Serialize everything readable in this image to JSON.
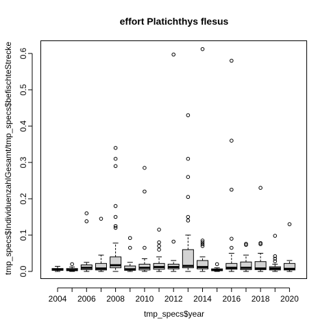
{
  "chart_data": {
    "type": "boxplot",
    "title": "effort Platichthys flesus",
    "xlabel": "tmp_specs$year",
    "ylabel": "tmp_specs$IndividuenzahlGesamt/tmp_specs$befischteStrecke",
    "ylim": [
      0,
      0.62
    ],
    "yticks": [
      0.0,
      0.1,
      0.2,
      0.3,
      0.4,
      0.5,
      0.6
    ],
    "ytick_labels": [
      "0.0",
      "0.1",
      "0.2",
      "0.3",
      "0.4",
      "0.5",
      "0.6"
    ],
    "xtick_labels": [
      "2004",
      "2006",
      "2008",
      "2010",
      "2012",
      "2014",
      "2016",
      "2018",
      "2020"
    ],
    "xtick_positions": [
      1,
      3,
      5,
      7,
      9,
      11,
      13,
      15,
      17
    ],
    "boxes": [
      {
        "year": "2004",
        "low": 0.0,
        "q1": 0.003,
        "median": 0.005,
        "q3": 0.008,
        "high": 0.014,
        "outliers": []
      },
      {
        "year": "2005",
        "low": 0.0,
        "q1": 0.002,
        "median": 0.004,
        "q3": 0.008,
        "high": 0.012,
        "outliers": [
          0.02
        ]
      },
      {
        "year": "2006",
        "low": 0.0,
        "q1": 0.005,
        "median": 0.01,
        "q3": 0.018,
        "high": 0.025,
        "outliers": [
          0.138,
          0.16
        ]
      },
      {
        "year": "2007",
        "low": 0.0,
        "q1": 0.004,
        "median": 0.008,
        "q3": 0.022,
        "high": 0.045,
        "outliers": [
          0.145
        ]
      },
      {
        "year": "2008",
        "low": 0.0,
        "q1": 0.01,
        "median": 0.017,
        "q3": 0.04,
        "high": 0.078,
        "outliers": [
          0.12,
          0.125,
          0.15,
          0.18,
          0.29,
          0.31,
          0.34
        ]
      },
      {
        "year": "2009",
        "low": 0.0,
        "q1": 0.003,
        "median": 0.006,
        "q3": 0.015,
        "high": 0.025,
        "outliers": [
          0.065,
          0.092
        ]
      },
      {
        "year": "2010",
        "low": 0.0,
        "q1": 0.004,
        "median": 0.01,
        "q3": 0.02,
        "high": 0.035,
        "outliers": [
          0.065,
          0.22,
          0.285
        ]
      },
      {
        "year": "2011",
        "low": 0.0,
        "q1": 0.006,
        "median": 0.012,
        "q3": 0.022,
        "high": 0.04,
        "outliers": [
          0.06,
          0.07,
          0.08,
          0.115
        ]
      },
      {
        "year": "2012",
        "low": 0.0,
        "q1": 0.007,
        "median": 0.012,
        "q3": 0.02,
        "high": 0.03,
        "outliers": [
          0.082,
          0.597
        ]
      },
      {
        "year": "2013",
        "low": 0.0,
        "q1": 0.01,
        "median": 0.015,
        "q3": 0.06,
        "high": 0.1,
        "outliers": [
          0.14,
          0.15,
          0.205,
          0.26,
          0.31,
          0.43
        ]
      },
      {
        "year": "2014",
        "low": 0.0,
        "q1": 0.007,
        "median": 0.012,
        "q3": 0.03,
        "high": 0.04,
        "outliers": [
          0.07,
          0.075,
          0.08,
          0.085,
          0.612
        ]
      },
      {
        "year": "2015",
        "low": 0.0,
        "q1": 0.002,
        "median": 0.004,
        "q3": 0.007,
        "high": 0.01,
        "outliers": [
          0.02
        ]
      },
      {
        "year": "2016",
        "low": 0.0,
        "q1": 0.006,
        "median": 0.01,
        "q3": 0.022,
        "high": 0.05,
        "outliers": [
          0.065,
          0.09,
          0.225,
          0.36,
          0.58
        ]
      },
      {
        "year": "2017",
        "low": 0.0,
        "q1": 0.005,
        "median": 0.01,
        "q3": 0.026,
        "high": 0.045,
        "outliers": [
          0.073,
          0.076
        ]
      },
      {
        "year": "2018",
        "low": 0.0,
        "q1": 0.005,
        "median": 0.008,
        "q3": 0.027,
        "high": 0.05,
        "outliers": [
          0.075,
          0.078,
          0.23
        ]
      },
      {
        "year": "2019",
        "low": 0.0,
        "q1": 0.004,
        "median": 0.008,
        "q3": 0.013,
        "high": 0.02,
        "outliers": [
          0.028,
          0.035,
          0.042,
          0.098
        ]
      },
      {
        "year": "2020",
        "low": 0.0,
        "q1": 0.004,
        "median": 0.007,
        "q3": 0.022,
        "high": 0.03,
        "outliers": [
          0.13
        ]
      }
    ],
    "grid": false,
    "box_color": "#d3d3d3"
  }
}
